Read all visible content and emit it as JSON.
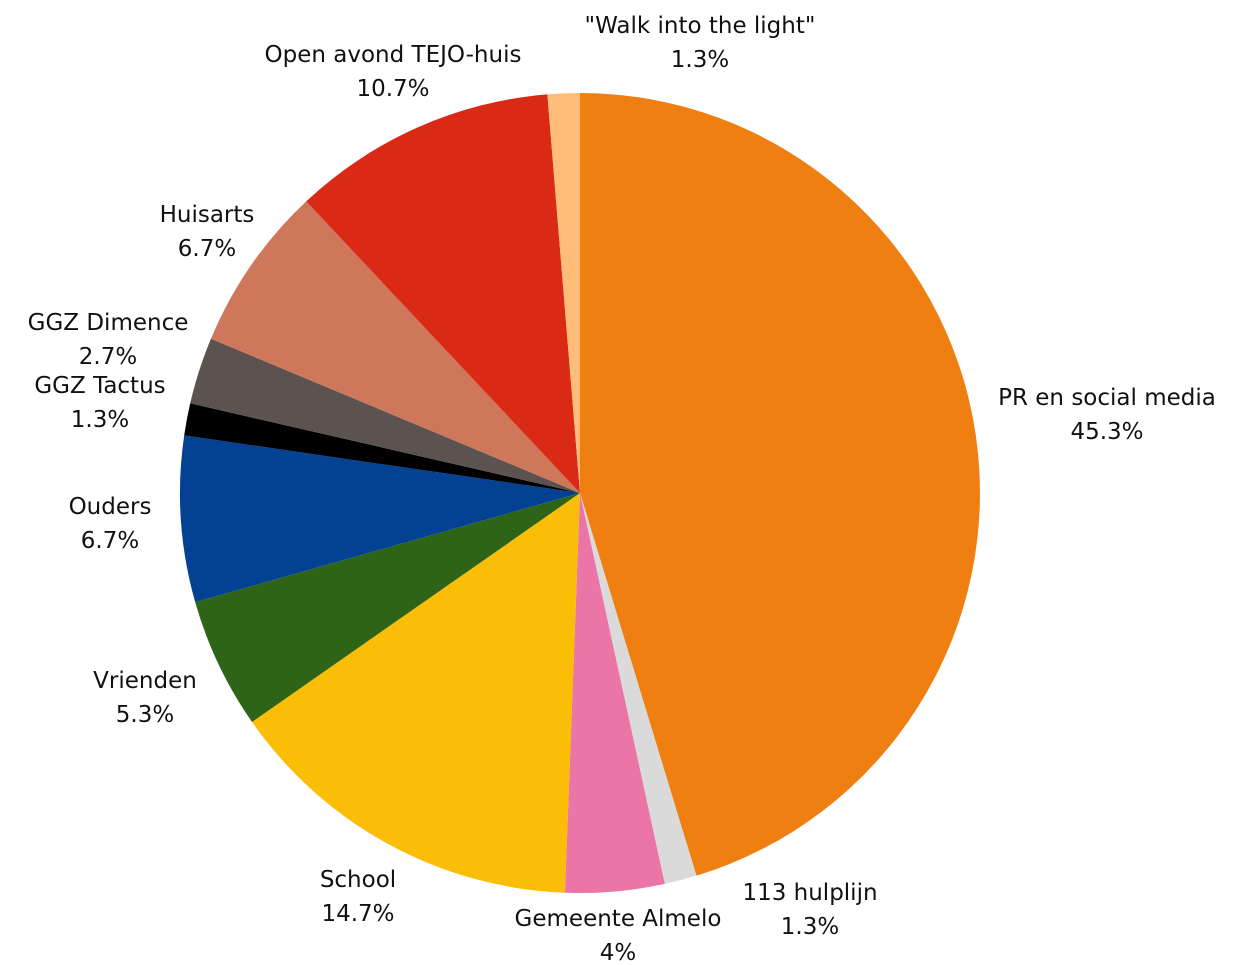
{
  "chart_data": {
    "type": "pie",
    "title": "",
    "slices": [
      {
        "label": "PR en social media",
        "value": 45.3,
        "value_label": "45.3%",
        "color": "#EF7F11"
      },
      {
        "label": "113 hulplijn",
        "value": 1.3,
        "value_label": "1.3%",
        "color": "#DADADA"
      },
      {
        "label": "Gemeente Almelo",
        "value": 4,
        "value_label": "4%",
        "color": "#EC75A8"
      },
      {
        "label": "School",
        "value": 14.7,
        "value_label": "14.7%",
        "color": "#F9BE05"
      },
      {
        "label": "Vrienden",
        "value": 5.3,
        "value_label": "5.3%",
        "color": "#2E6418"
      },
      {
        "label": "Ouders",
        "value": 6.7,
        "value_label": "6.7%",
        "color": "#034292"
      },
      {
        "label": "GGZ Tactus",
        "value": 1.3,
        "value_label": "1.3%",
        "color": "#000000"
      },
      {
        "label": "GGZ Dimence",
        "value": 2.7,
        "value_label": "2.7%",
        "color": "#5C5250"
      },
      {
        "label": "Huisarts",
        "value": 6.7,
        "value_label": "6.7%",
        "color": "#CE775B"
      },
      {
        "label": "Open avond TEJO-huis",
        "value": 10.7,
        "value_label": "10.7%",
        "color": "#DA2A16"
      },
      {
        "label": "\"Walk into the light\"",
        "value": 1.3,
        "value_label": "1.3%",
        "color": "#FFBD77"
      }
    ],
    "legend": "none",
    "start": "top, clockwise"
  }
}
